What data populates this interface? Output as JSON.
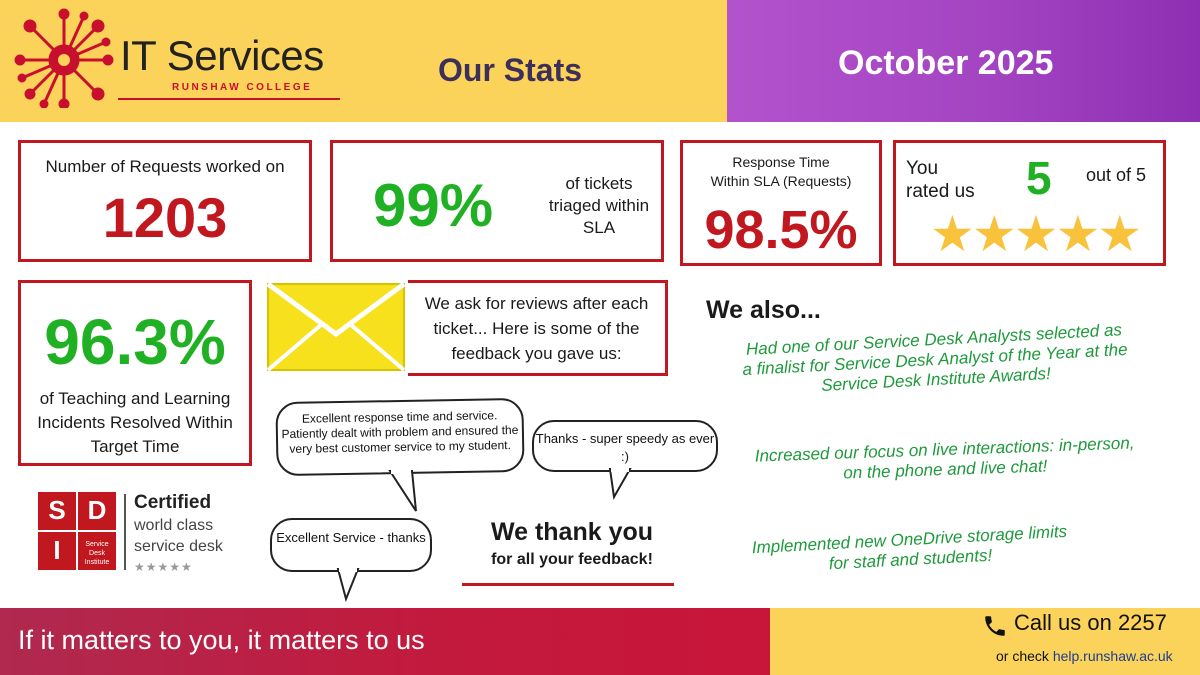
{
  "header": {
    "logo_title": "IT Services",
    "logo_subtitle": "RUNSHAW COLLEGE",
    "title": "Our Stats",
    "month": "October 2025"
  },
  "stats": {
    "requests": {
      "label": "Number of Requests worked on",
      "value": "1203"
    },
    "triage": {
      "value": "99%",
      "label": "of tickets triaged within SLA"
    },
    "response": {
      "label_line1": "Response Time",
      "label_line2": "Within SLA (Requests)",
      "value": "98.5%"
    },
    "rating": {
      "label_line1": "You",
      "label_line2": "rated us",
      "value": "5",
      "suffix": "out of 5",
      "stars": 5,
      "star_color": "#f9c23c"
    },
    "incidents": {
      "value": "96.3%",
      "label": "of Teaching and Learning Incidents Resolved Within Target Time"
    }
  },
  "reviews_intro": "We ask for reviews after each ticket... Here is some of the feedback you gave us:",
  "feedback": [
    "Excellent response time and service. Patiently dealt with problem and ensured the very best customer service to my student.",
    "Thanks - super speedy as ever :)",
    "Excellent Service - thanks"
  ],
  "thanks": {
    "line1": "We thank you",
    "line2": "for all your feedback!"
  },
  "we_also": {
    "heading": "We also...",
    "items": [
      [
        "Had one of our Service Desk Analysts selected as",
        "a finalist for Service Desk Analyst of the Year at the",
        "Service Desk Institute Awards!"
      ],
      [
        "Increased our focus on live interactions: in-person,",
        "on the phone and live chat!"
      ],
      [
        "Implemented new OneDrive storage limits",
        "for staff and students!"
      ]
    ]
  },
  "sdi": {
    "letters": [
      "S",
      "D",
      "I"
    ],
    "small_text": "Service Desk Institute",
    "certified": "Certified",
    "line2": "world class",
    "line3": "service desk",
    "stars": "★★★★★"
  },
  "footer": {
    "tagline": "If it matters to you, it matters to us",
    "call": "Call us on 2257",
    "or_check": "or check",
    "url": "help.runshaw.ac.uk"
  },
  "colors": {
    "header_yellow": "#fcd35a",
    "header_purple": "#a344c2",
    "accent_red": "#c0181e",
    "stat_green": "#20b024",
    "also_green": "#1e9a3c"
  }
}
